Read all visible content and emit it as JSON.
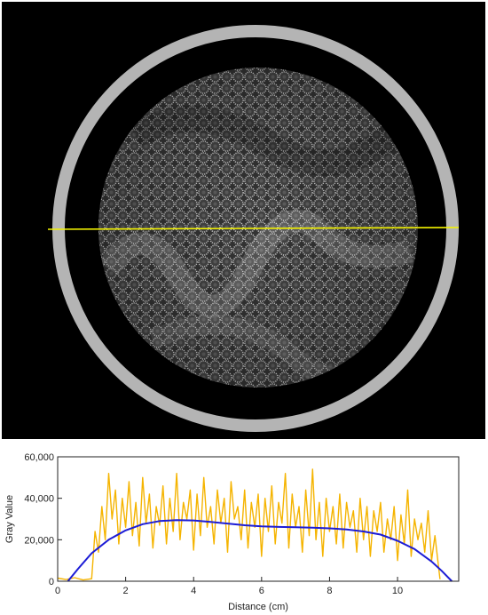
{
  "ct_image": {
    "profile_line_color": "#f4f400",
    "ring_color": "#b4b4b4",
    "background_color": "#000000"
  },
  "chart_data": {
    "type": "line",
    "title": "",
    "xlabel": "Distance (cm)",
    "ylabel": "Gray Value",
    "xlim": [
      0,
      11.8
    ],
    "ylim": [
      0,
      60000
    ],
    "x_ticks": [
      0,
      2,
      4,
      6,
      8,
      10
    ],
    "y_ticks": [
      0,
      20000,
      40000,
      60000
    ],
    "x_tick_labels": [
      "0",
      "2",
      "4",
      "6",
      "8",
      "10"
    ],
    "y_tick_labels": [
      "0",
      "20,000",
      "40,000",
      "60,000"
    ],
    "grid": false,
    "series": [
      {
        "style": "noisy",
        "color": "#f5b400",
        "x": [
          0,
          0.25,
          0.5,
          0.75,
          1.0,
          1.1,
          1.2,
          1.3,
          1.4,
          1.5,
          1.6,
          1.7,
          1.8,
          1.9,
          2.0,
          2.1,
          2.2,
          2.3,
          2.4,
          2.5,
          2.6,
          2.7,
          2.8,
          2.9,
          3.0,
          3.1,
          3.2,
          3.3,
          3.4,
          3.5,
          3.6,
          3.7,
          3.8,
          3.9,
          4.0,
          4.1,
          4.2,
          4.3,
          4.4,
          4.5,
          4.6,
          4.7,
          4.8,
          4.9,
          5.0,
          5.1,
          5.2,
          5.3,
          5.4,
          5.5,
          5.6,
          5.7,
          5.8,
          5.9,
          6.0,
          6.1,
          6.2,
          6.3,
          6.4,
          6.5,
          6.6,
          6.7,
          6.8,
          6.9,
          7.0,
          7.1,
          7.2,
          7.3,
          7.4,
          7.5,
          7.6,
          7.7,
          7.8,
          7.9,
          8.0,
          8.1,
          8.2,
          8.3,
          8.4,
          8.5,
          8.6,
          8.7,
          8.8,
          8.9,
          9.0,
          9.1,
          9.2,
          9.3,
          9.4,
          9.5,
          9.6,
          9.7,
          9.8,
          9.9,
          10.0,
          10.1,
          10.2,
          10.3,
          10.4,
          10.5,
          10.6,
          10.7,
          10.8,
          10.9,
          11.0,
          11.1,
          11.25
        ],
        "y": [
          1500,
          800,
          1700,
          600,
          1200,
          24000,
          14000,
          36000,
          20000,
          52000,
          30000,
          44000,
          18000,
          40000,
          26000,
          48000,
          22000,
          38000,
          17000,
          50000,
          28000,
          42000,
          16000,
          36000,
          27000,
          46000,
          18000,
          40000,
          24000,
          52000,
          20000,
          38000,
          30000,
          44000,
          15000,
          42000,
          22000,
          50000,
          26000,
          36000,
          18000,
          44000,
          28000,
          40000,
          14000,
          48000,
          30000,
          36000,
          20000,
          44000,
          16000,
          38000,
          26000,
          42000,
          12000,
          40000,
          24000,
          46000,
          18000,
          38000,
          28000,
          52000,
          16000,
          42000,
          26000,
          36000,
          14000,
          44000,
          22000,
          54000,
          20000,
          38000,
          12000,
          40000,
          24000,
          36000,
          18000,
          42000,
          16000,
          38000,
          26000,
          34000,
          14000,
          40000,
          20000,
          36000,
          12000,
          34000,
          24000,
          38000,
          14000,
          30000,
          20000,
          36000,
          10000,
          32000,
          18000,
          44000,
          12000,
          30000,
          20000,
          28000,
          14000,
          34000,
          10000,
          22000,
          1000
        ]
      },
      {
        "style": "fit",
        "color": "#1c1cd6",
        "x": [
          0.3,
          0.6,
          1.0,
          1.5,
          2.0,
          2.5,
          3.0,
          3.5,
          4.0,
          4.5,
          5.0,
          5.5,
          6.0,
          6.5,
          7.0,
          7.5,
          8.0,
          8.5,
          9.0,
          9.5,
          10.0,
          10.5,
          11.0,
          11.3,
          11.6
        ],
        "y": [
          0,
          6000,
          13500,
          20000,
          24500,
          27500,
          29000,
          29500,
          29300,
          28600,
          27800,
          27000,
          26500,
          26200,
          26000,
          25800,
          25500,
          25000,
          24000,
          22500,
          19500,
          15500,
          9500,
          5000,
          0
        ]
      }
    ]
  }
}
